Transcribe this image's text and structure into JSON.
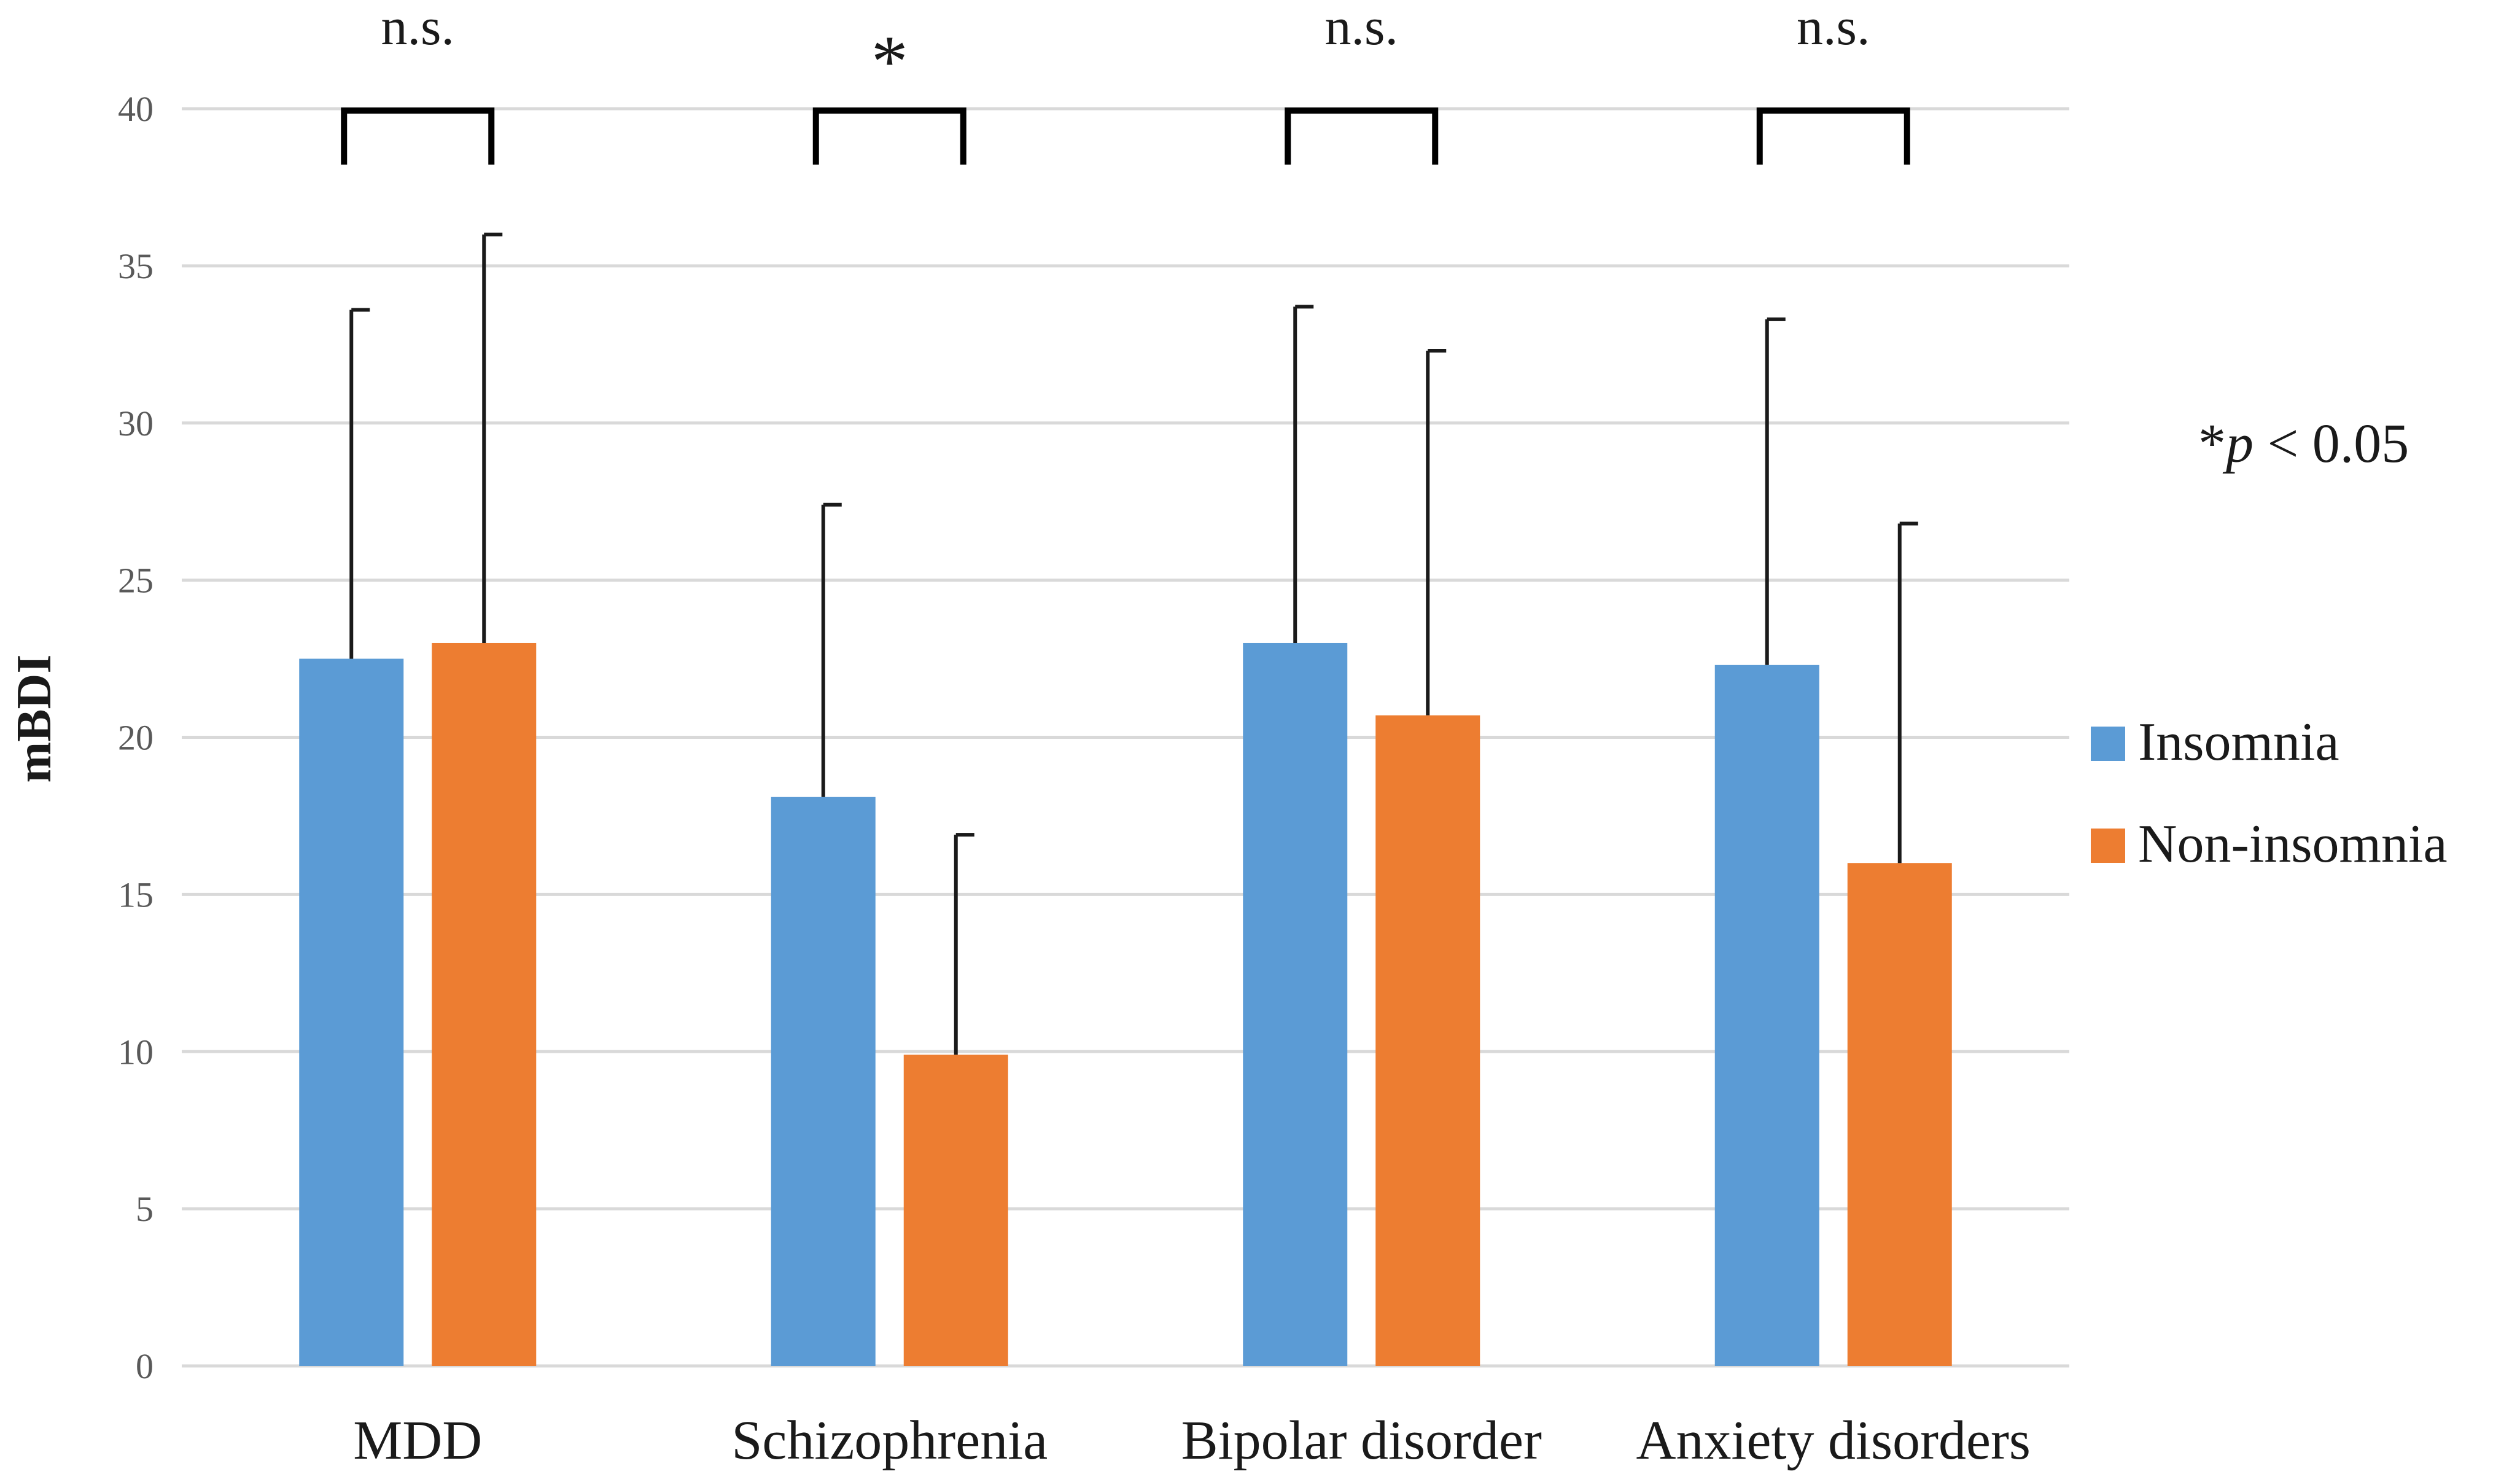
{
  "chart_data": {
    "type": "bar",
    "title": "",
    "xlabel": "",
    "ylabel": "mBDI",
    "ylim": [
      0,
      40
    ],
    "yticks": [
      0,
      5,
      10,
      15,
      20,
      25,
      30,
      35,
      40
    ],
    "grid": true,
    "categories": [
      "MDD",
      "Schizophrenia",
      "Bipolar disorder",
      "Anxiety disorders"
    ],
    "series": [
      {
        "name": "Insomnia",
        "color": "#5B9BD5",
        "values": [
          22.5,
          18.1,
          23.0,
          22.3
        ],
        "error_upper": [
          33.6,
          27.4,
          33.7,
          33.3
        ]
      },
      {
        "name": "Non-insomnia",
        "color": "#ED7D31",
        "values": [
          23.0,
          9.9,
          20.7,
          16.0
        ],
        "error_upper": [
          36.0,
          16.9,
          32.3,
          26.8
        ]
      }
    ],
    "significance": [
      "n.s.",
      "*",
      "n.s.",
      "n.s."
    ],
    "annotation": {
      "prefix": "*",
      "italic": "p",
      "suffix": " < 0.05"
    },
    "legend_position": "right"
  }
}
